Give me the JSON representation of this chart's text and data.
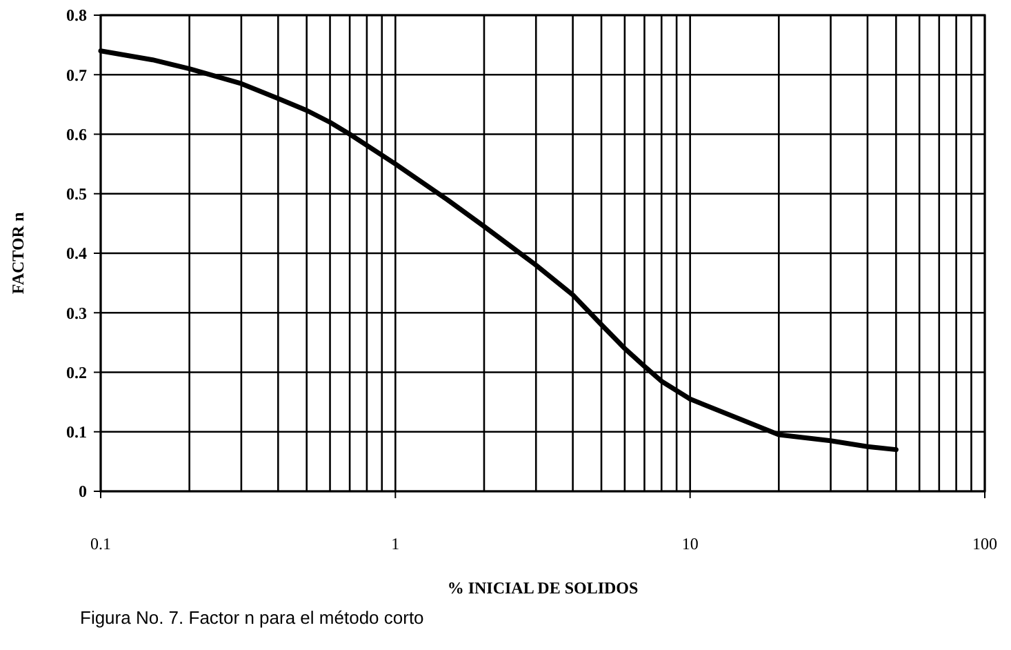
{
  "chart_data": {
    "type": "line",
    "xlabel": "% INICIAL DE SOLIDOS",
    "ylabel": "FACTOR n",
    "log": "x",
    "grid": true,
    "marker": "none",
    "line_style": "solid",
    "annotations": [
      "Figura No. 7. Factor n para el método corto"
    ],
    "xlim": [
      0.1,
      100
    ],
    "ylim": [
      0,
      0.8
    ],
    "xticks": [
      0.1,
      {
        "value": 0.2,
        "label": null
      },
      {
        "value": 0.3,
        "label": null
      },
      {
        "value": 0.4,
        "label": null
      },
      {
        "value": 0.5,
        "label": null
      },
      {
        "value": 0.6,
        "label": null
      },
      {
        "value": 0.7,
        "label": null
      },
      {
        "value": 0.8,
        "label": null
      },
      {
        "value": 0.9,
        "label": null
      },
      1,
      {
        "value": 2,
        "label": null
      },
      {
        "value": 3,
        "label": null
      },
      {
        "value": 4,
        "label": null
      },
      {
        "value": 5,
        "label": null
      },
      {
        "value": 6,
        "label": null
      },
      {
        "value": 7,
        "label": null
      },
      {
        "value": 8,
        "label": null
      },
      {
        "value": 9,
        "label": null
      },
      10,
      {
        "value": 20,
        "label": null
      },
      {
        "value": 30,
        "label": null
      },
      {
        "value": 40,
        "label": null
      },
      {
        "value": 50,
        "label": null
      },
      {
        "value": 60,
        "label": null
      },
      {
        "value": 70,
        "label": null
      },
      {
        "value": 80,
        "label": null
      },
      {
        "value": 90,
        "label": null
      },
      100
    ],
    "yticks": [
      0,
      0.1,
      0.2,
      0.3,
      0.4,
      0.5,
      0.6,
      0.7,
      0.8
    ],
    "x": [
      0.1,
      0.15,
      0.2,
      0.3,
      0.4,
      0.5,
      0.6,
      0.7,
      1,
      1.5,
      2,
      3,
      4,
      5,
      6,
      7,
      8,
      10,
      15,
      20,
      30,
      40,
      50
    ],
    "series": [
      {
        "color": "#000000",
        "values": [
          0.74,
          0.725,
          0.71,
          0.685,
          0.66,
          0.64,
          0.62,
          0.6,
          0.55,
          0.49,
          0.445,
          0.38,
          0.33,
          0.28,
          0.24,
          0.21,
          0.185,
          0.155,
          0.12,
          0.095,
          0.085,
          0.075,
          0.07
        ]
      }
    ]
  }
}
